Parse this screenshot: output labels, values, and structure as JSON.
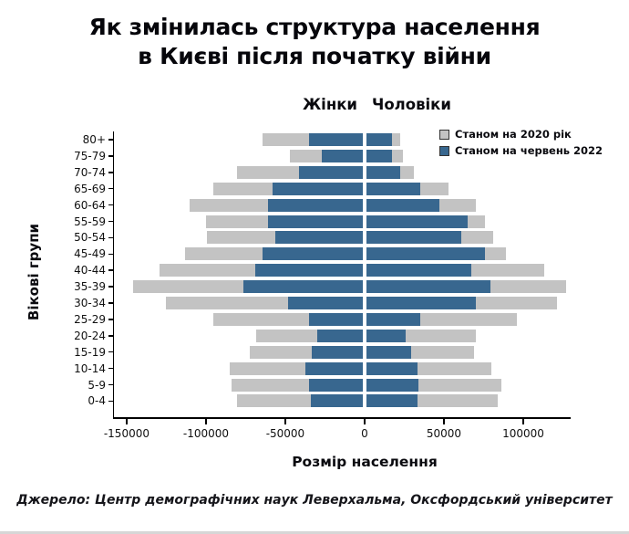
{
  "page": {
    "source": "Джерело: Центр демографічних наук Леверхальма, Оксфордський університет"
  },
  "chart_data": {
    "type": "bar",
    "variant": "population-pyramid",
    "title": "Як змінилась структура населення в Києві після початку війни",
    "title_lines": [
      "Як змінилась структура населення",
      "в Києві після початку війни"
    ],
    "xlabel": "Розмір населення",
    "ylabel": "Вікові групи",
    "left_group_header": "Жінки",
    "right_group_header": "Чоловіки",
    "legend": [
      {
        "label": "Станом на 2020 рік",
        "color": "#c3c3c3"
      },
      {
        "label": "Станом на червень 2022",
        "color": "#38678f"
      }
    ],
    "x_ticks": [
      -150000,
      -100000,
      -50000,
      0,
      50000,
      100000
    ],
    "xlim": [
      -158000,
      129300
    ],
    "grid": false,
    "legend_position": "top-right",
    "age_groups": [
      "80+",
      "75-79",
      "70-74",
      "65-69",
      "60-64",
      "55-59",
      "50-54",
      "45-49",
      "40-44",
      "35-39",
      "30-34",
      "25-29",
      "20-24",
      "15-19",
      "10-14",
      "5-9",
      "0-4"
    ],
    "series": [
      {
        "name": "Станом на 2020 рік",
        "color": "#c3c3c3",
        "women": [
          63000,
          46000,
          79000,
          94000,
          109000,
          99000,
          98000,
          112000,
          128000,
          145000,
          124000,
          94000,
          67000,
          71000,
          84000,
          83000,
          79000
        ],
        "men": [
          21000,
          23000,
          30000,
          52000,
          69000,
          75000,
          80000,
          88000,
          112000,
          126000,
          120000,
          95000,
          69000,
          68000,
          79000,
          85000,
          83000
        ]
      },
      {
        "name": "Станом на червень 2022",
        "color": "#38678f",
        "women": [
          34000,
          26000,
          40000,
          57000,
          60000,
          60000,
          55000,
          63000,
          68000,
          75000,
          47000,
          34000,
          29000,
          32000,
          36000,
          34000,
          33000
        ],
        "men": [
          16000,
          16000,
          21000,
          34000,
          46000,
          64000,
          60000,
          75000,
          66000,
          78000,
          69000,
          34000,
          25000,
          28000,
          32000,
          33000,
          32000
        ]
      }
    ]
  }
}
